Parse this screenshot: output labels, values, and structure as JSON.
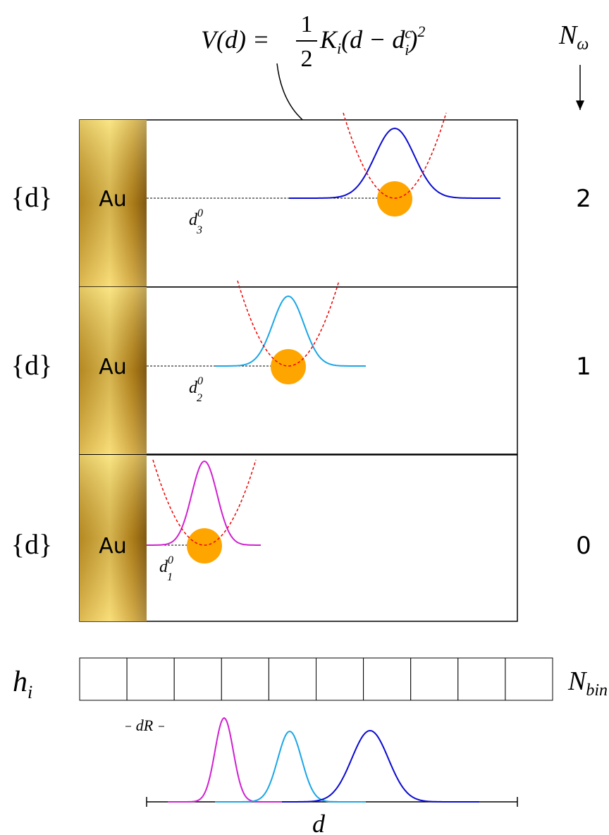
{
  "formula": {
    "lhs": "V(d) =",
    "numerator": "1",
    "denominator": "2",
    "factor": "K",
    "factor_sub": "i",
    "paren": "(d − d",
    "center_sup": "c",
    "center_sub": "i",
    "close": ")",
    "power": "2"
  },
  "axis_label": {
    "base": "N",
    "sub": "ω"
  },
  "panels": [
    {
      "set_label": "{d}",
      "surface": "Au",
      "n_omega": "2",
      "distance": {
        "base": "d",
        "sup": "0",
        "sub": "3"
      }
    },
    {
      "set_label": "{d}",
      "surface": "Au",
      "n_omega": "1",
      "distance": {
        "base": "d",
        "sup": "0",
        "sub": "2"
      }
    },
    {
      "set_label": "{d}",
      "surface": "Au",
      "n_omega": "0",
      "distance": {
        "base": "d",
        "sup": "0",
        "sub": "1"
      }
    }
  ],
  "histogram": {
    "label": {
      "base": "h",
      "sub": "i"
    },
    "bins_label": {
      "base": "N",
      "sub": "bin"
    },
    "bin_width": "dR",
    "axis": "d"
  }
}
